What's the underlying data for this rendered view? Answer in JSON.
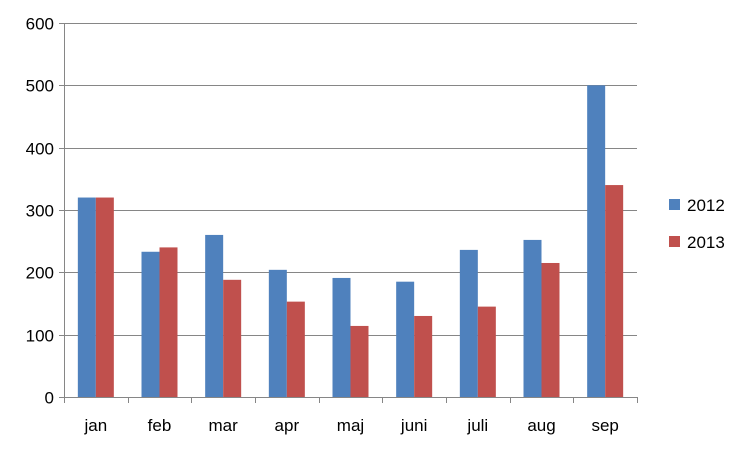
{
  "chart_data": {
    "type": "bar",
    "title": "",
    "xlabel": "",
    "ylabel": "",
    "categories": [
      "jan",
      "feb",
      "mar",
      "apr",
      "maj",
      "juni",
      "juli",
      "aug",
      "sep"
    ],
    "series": [
      {
        "name": "2012",
        "color": "#4F81BD",
        "values": [
          320,
          233,
          260,
          204,
          191,
          185,
          236,
          252,
          500
        ]
      },
      {
        "name": "2013",
        "color": "#C0504D",
        "values": [
          320,
          240,
          188,
          153,
          114,
          130,
          145,
          215,
          340
        ]
      }
    ],
    "ylim": [
      0,
      600
    ],
    "yticks": [
      0,
      100,
      200,
      300,
      400,
      500,
      600
    ],
    "grid": true,
    "legend_position": "right"
  }
}
